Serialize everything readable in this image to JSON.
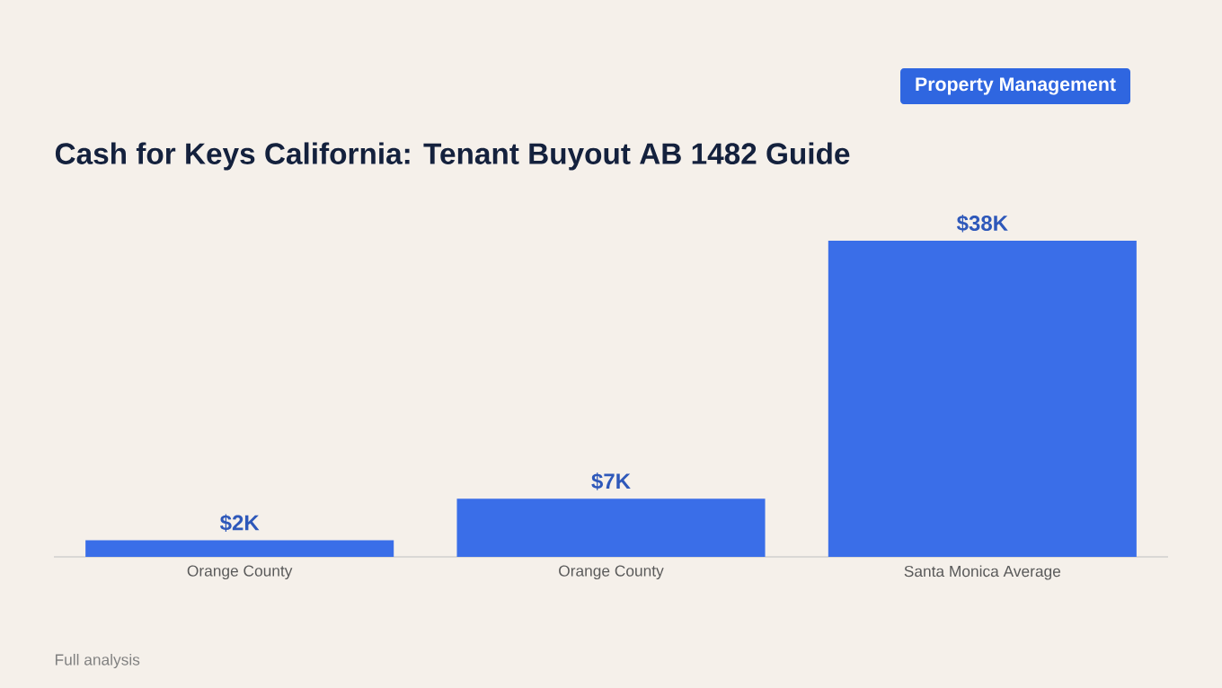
{
  "chart_data": {
    "type": "bar",
    "title": "Cash for Keys California: Tenant Buyout AB 1482 Guide",
    "categories": [
      "Orange County",
      "Orange County",
      "Santa Monica Average"
    ],
    "values": [
      2,
      7,
      38
    ],
    "value_labels": [
      "$2K",
      "$7K",
      "$38K"
    ],
    "color": "#3a6ee8",
    "ylim": [
      0,
      38
    ],
    "tick_labels": "x",
    "annotations": [
      "Property Management",
      "Full analysis"
    ]
  }
}
